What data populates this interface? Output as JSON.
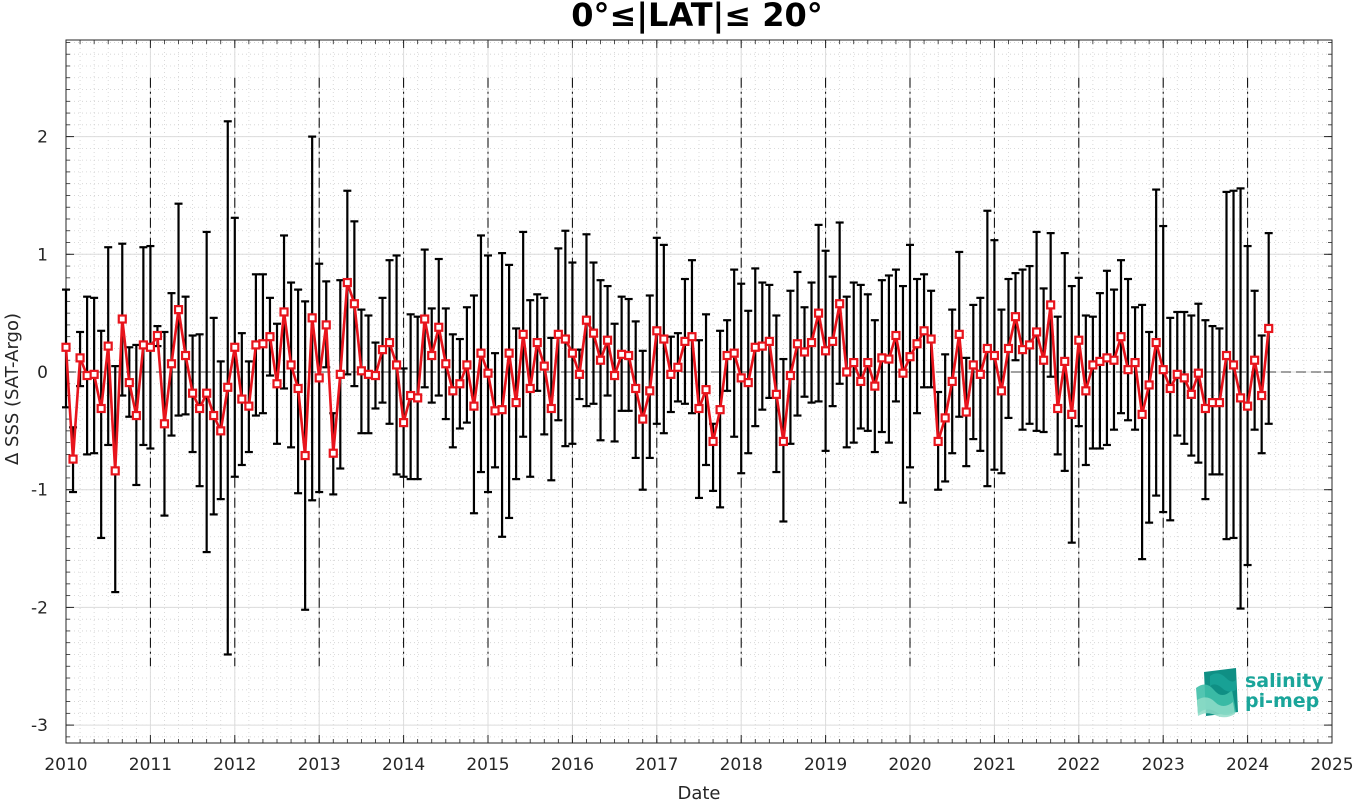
{
  "chart_data": {
    "type": "line",
    "title": "0°≤|LAT|≤ 20°",
    "xlabel": "Date",
    "ylabel": "Δ SSS (SAT-Argo)",
    "xlim": [
      2010,
      2025
    ],
    "ylim": [
      -3.1,
      2.8
    ],
    "xticks": [
      "2010",
      "2011",
      "2012",
      "2013",
      "2014",
      "2015",
      "2016",
      "2017",
      "2018",
      "2019",
      "2020",
      "2021",
      "2022",
      "2023",
      "2024",
      "2025"
    ],
    "yticks": [
      "-3",
      "-2",
      "-1",
      "0",
      "1",
      "2"
    ],
    "grid": true,
    "zero_line": true,
    "year_marker_lines": true,
    "series": [
      {
        "color": "#e8141c",
        "error_color": "#000000",
        "marker": "square",
        "mean": [
          0.21,
          -0.74,
          0.12,
          -0.03,
          -0.02,
          -0.31,
          0.22,
          -0.84,
          0.45,
          -0.09,
          -0.37,
          0.23,
          0.21,
          0.31,
          -0.44,
          0.07,
          0.53,
          0.14,
          -0.18,
          -0.31,
          -0.18,
          -0.37,
          -0.5,
          -0.13,
          0.21,
          -0.23,
          -0.29,
          0.23,
          0.24,
          0.3,
          -0.1,
          0.51,
          0.06,
          -0.14,
          -0.71,
          0.46,
          -0.05,
          0.4,
          -0.69,
          -0.02,
          0.76,
          0.58,
          0.01,
          -0.02,
          -0.03,
          0.19,
          0.25,
          0.06,
          -0.43,
          -0.2,
          -0.22,
          0.45,
          0.14,
          0.38,
          0.07,
          -0.16,
          -0.1,
          0.06,
          -0.29,
          0.16,
          -0.01,
          -0.33,
          -0.32,
          0.16,
          -0.26,
          0.32,
          -0.14,
          0.25,
          0.05,
          -0.31,
          0.32,
          0.28,
          0.16,
          -0.02,
          0.44,
          0.33,
          0.1,
          0.27,
          -0.03,
          0.15,
          0.14,
          -0.14,
          -0.4,
          -0.16,
          0.35,
          0.28,
          -0.02,
          0.04,
          0.26,
          0.3,
          -0.31,
          -0.15,
          -0.59,
          -0.32,
          0.14,
          0.16,
          -0.05,
          -0.09,
          0.21,
          0.22,
          0.26,
          -0.19,
          -0.59,
          -0.03,
          0.24,
          0.17,
          0.25,
          0.5,
          0.18,
          0.26,
          0.58,
          0.0,
          0.08,
          -0.08,
          0.08,
          -0.12,
          0.12,
          0.11,
          0.31,
          -0.01,
          0.13,
          0.24,
          0.35,
          0.28,
          -0.59,
          -0.39,
          -0.08,
          0.32,
          -0.34,
          0.06,
          -0.02,
          0.2,
          0.14,
          -0.16,
          0.2,
          0.47,
          0.19,
          0.23,
          0.34,
          0.1,
          0.57,
          -0.31,
          0.09,
          -0.36,
          0.27,
          -0.16,
          0.06,
          0.09,
          0.12,
          0.1,
          0.3,
          0.02,
          0.08,
          -0.36,
          -0.11,
          0.25,
          0.02,
          -0.14,
          -0.02,
          -0.05,
          -0.19,
          -0.01,
          -0.31,
          -0.26,
          -0.26,
          0.14,
          0.06,
          -0.22,
          -0.29,
          0.1,
          -0.2,
          0.37
        ],
        "upper": [
          0.7,
          -0.47,
          0.34,
          0.64,
          0.63,
          0.35,
          1.06,
          0.05,
          1.09,
          0.21,
          0.23,
          1.06,
          1.07,
          0.39,
          0.34,
          0.67,
          1.43,
          0.64,
          0.31,
          0.32,
          1.19,
          0.46,
          0.09,
          2.13,
          1.31,
          0.33,
          0.09,
          0.83,
          0.83,
          0.63,
          0.41,
          1.16,
          0.76,
          0.7,
          0.6,
          2.0,
          0.92,
          0.77,
          -0.35,
          0.78,
          1.54,
          1.28,
          0.53,
          0.48,
          0.25,
          0.63,
          0.95,
          0.99,
          0.03,
          0.49,
          0.47,
          1.04,
          0.54,
          0.96,
          0.54,
          0.32,
          0.28,
          0.55,
          0.65,
          1.16,
          0.99,
          0.16,
          1.01,
          0.91,
          0.37,
          1.19,
          0.61,
          0.66,
          0.63,
          0.29,
          1.05,
          1.2,
          0.93,
          0.19,
          1.17,
          0.93,
          0.78,
          0.73,
          0.41,
          0.64,
          0.62,
          0.43,
          0.18,
          0.65,
          1.14,
          1.08,
          0.3,
          0.33,
          0.79,
          0.95,
          0.27,
          0.49,
          -0.44,
          0.35,
          0.44,
          0.87,
          0.75,
          0.52,
          0.88,
          0.76,
          0.74,
          0.48,
          0.11,
          0.69,
          0.85,
          0.55,
          0.76,
          1.25,
          1.03,
          0.81,
          1.27,
          0.64,
          0.76,
          0.74,
          0.66,
          0.44,
          0.78,
          0.82,
          0.87,
          0.73,
          1.08,
          0.79,
          0.83,
          0.69,
          -0.17,
          0.15,
          0.53,
          1.02,
          0.12,
          0.57,
          0.63,
          1.37,
          1.12,
          0.53,
          0.79,
          0.84,
          0.87,
          0.9,
          1.19,
          0.71,
          1.18,
          0.47,
          1.01,
          0.73,
          0.8,
          0.48,
          0.47,
          0.67,
          0.86,
          0.7,
          0.95,
          0.79,
          0.55,
          0.57,
          0.34,
          1.55,
          1.24,
          0.46,
          0.51,
          0.51,
          0.48,
          0.58,
          0.44,
          0.39,
          0.37,
          1.53,
          1.54,
          1.56,
          1.07,
          0.69,
          0.31,
          1.18
        ],
        "lower": [
          -0.3,
          -1.02,
          -0.12,
          -0.7,
          -0.69,
          -1.41,
          -0.62,
          -1.87,
          -0.2,
          -0.38,
          -0.96,
          -0.62,
          -0.65,
          0.22,
          -1.22,
          -0.54,
          -0.37,
          -0.36,
          -0.68,
          -0.97,
          -1.53,
          -1.21,
          -1.08,
          -2.4,
          -0.89,
          -0.79,
          -0.68,
          -0.37,
          -0.35,
          -0.03,
          -0.61,
          -0.14,
          -0.64,
          -1.03,
          -2.02,
          -1.09,
          -1.02,
          0.04,
          -1.04,
          -0.82,
          -0.02,
          -0.12,
          -0.52,
          -0.52,
          -0.31,
          -0.26,
          -0.44,
          -0.87,
          -0.89,
          -0.91,
          -0.91,
          -0.13,
          -0.26,
          -0.2,
          -0.4,
          -0.64,
          -0.48,
          -0.43,
          -1.2,
          -0.85,
          -1.02,
          -0.81,
          -1.4,
          -1.24,
          -0.91,
          -0.55,
          -0.89,
          -0.16,
          -0.53,
          -0.92,
          -0.41,
          -0.63,
          -0.61,
          -0.23,
          -0.29,
          -0.27,
          -0.58,
          -0.2,
          -0.59,
          -0.33,
          -0.33,
          -0.73,
          -1.0,
          -0.73,
          -0.44,
          -0.52,
          -0.34,
          -0.25,
          -0.27,
          -0.35,
          -1.07,
          -0.79,
          -1.01,
          -1.15,
          -0.16,
          -0.55,
          -0.86,
          -0.69,
          -0.46,
          -0.32,
          -0.22,
          -0.85,
          -1.27,
          -0.61,
          -0.37,
          -0.21,
          -0.26,
          -0.25,
          -0.67,
          -0.29,
          -0.1,
          -0.64,
          -0.6,
          -0.48,
          -0.5,
          -0.68,
          -0.51,
          -0.6,
          -0.25,
          -1.11,
          -0.81,
          -0.35,
          -0.13,
          -0.13,
          -1.0,
          -0.93,
          -0.69,
          -0.38,
          -0.8,
          -0.57,
          -0.67,
          -0.97,
          -0.83,
          -0.86,
          -0.39,
          0.1,
          -0.49,
          -0.44,
          -0.5,
          -0.51,
          -0.04,
          -0.7,
          -0.84,
          -1.45,
          -0.46,
          -0.79,
          -0.65,
          -0.65,
          -0.62,
          -0.49,
          -0.35,
          -0.41,
          -0.49,
          -1.59,
          -1.28,
          -1.05,
          -1.19,
          -1.26,
          -0.54,
          -0.61,
          -0.71,
          -0.77,
          -1.08,
          -0.87,
          -0.87,
          -1.42,
          -1.41,
          -2.01,
          -1.64,
          -0.49,
          -0.69,
          -0.44
        ]
      }
    ]
  },
  "logo": {
    "line1": "salinity",
    "line2": "pi-mep",
    "color": "#1aa59a"
  }
}
